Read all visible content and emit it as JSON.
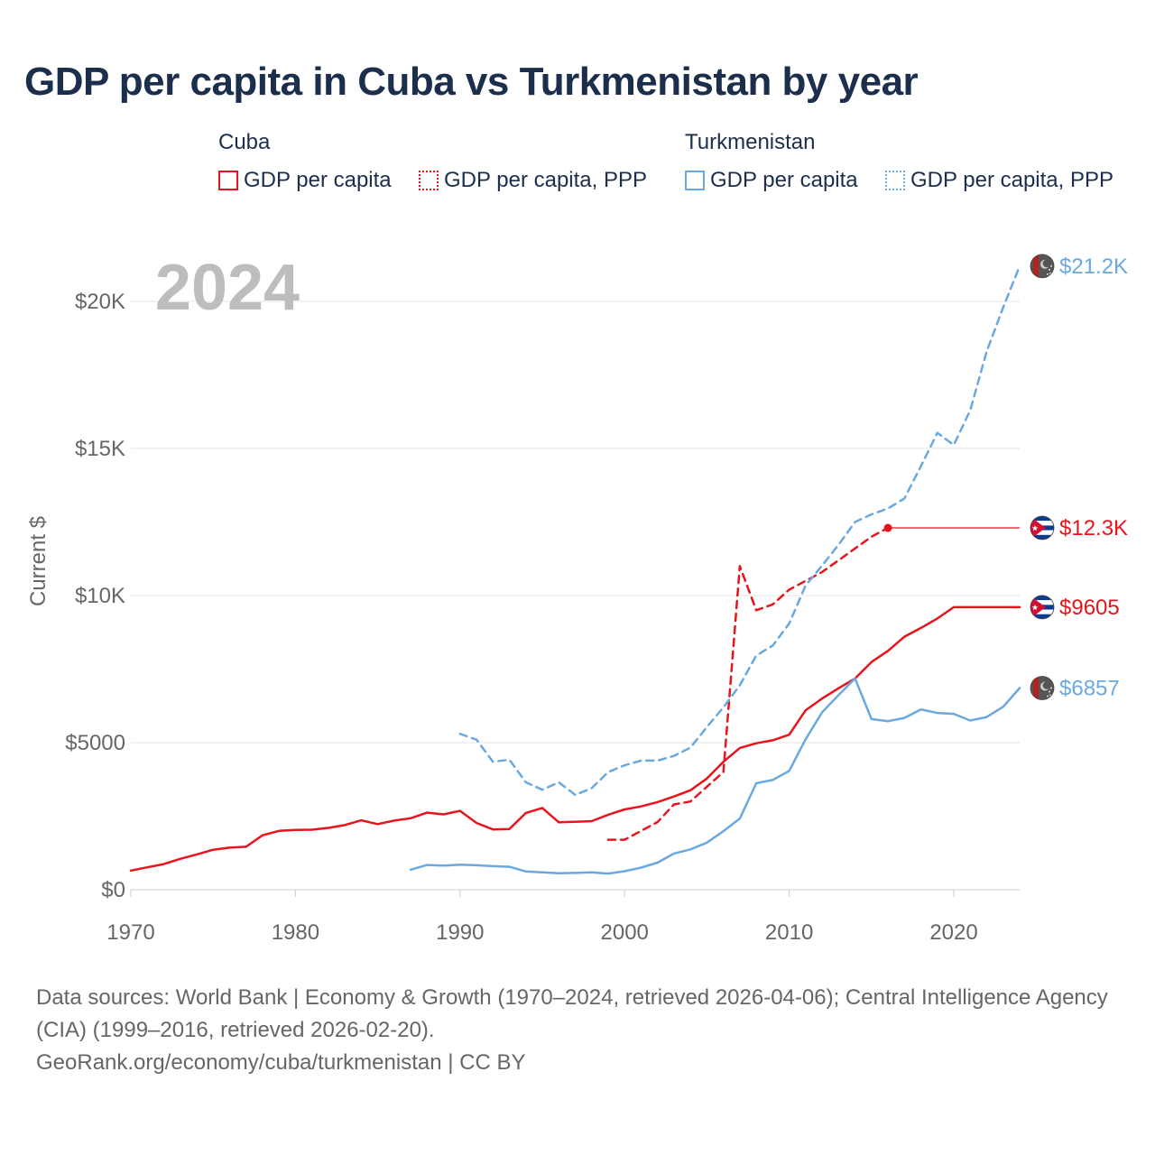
{
  "title": "GDP per capita in Cuba vs Turkmenistan by year",
  "year_label": "2024",
  "legend": {
    "groups": [
      {
        "name": "Cuba",
        "items": [
          {
            "label": "GDP per capita",
            "style": "solid",
            "color": "#e8141c"
          },
          {
            "label": "GDP per capita, PPP",
            "style": "dotted",
            "color": "#e8141c"
          }
        ]
      },
      {
        "name": "Turkmenistan",
        "items": [
          {
            "label": "GDP per capita",
            "style": "solid",
            "color": "#6aa8e0"
          },
          {
            "label": "GDP per capita, PPP",
            "style": "dotted",
            "color": "#6aa8e0"
          }
        ]
      }
    ]
  },
  "chart_data": {
    "type": "line",
    "title": "GDP per capita in Cuba vs Turkmenistan by year",
    "xlabel": "",
    "ylabel": "Current $",
    "xlim": [
      1970,
      2024
    ],
    "ylim": [
      0,
      22000
    ],
    "xticks": [
      1970,
      1980,
      1990,
      2000,
      2010,
      2020
    ],
    "xtick_labels": [
      "1970",
      "1980",
      "1990",
      "2000",
      "2010",
      "2020"
    ],
    "yticks": [
      0,
      5000,
      10000,
      15000,
      20000
    ],
    "ytick_labels": [
      "$0",
      "$5000",
      "$10K",
      "$15K",
      "$20K"
    ],
    "grid": true,
    "series": [
      {
        "name": "Cuba GDP per capita",
        "color": "#e8141c",
        "dash": "solid",
        "end_label": "$9605",
        "end_value": 9605,
        "flag": "cuba",
        "x": [
          1970,
          1971,
          1972,
          1973,
          1974,
          1975,
          1976,
          1977,
          1978,
          1979,
          1980,
          1981,
          1982,
          1983,
          1984,
          1985,
          1986,
          1987,
          1988,
          1989,
          1990,
          1991,
          1992,
          1993,
          1994,
          1995,
          1996,
          1997,
          1998,
          1999,
          2000,
          2001,
          2002,
          2003,
          2004,
          2005,
          2006,
          2007,
          2008,
          2009,
          2010,
          2011,
          2012,
          2013,
          2014,
          2015,
          2016,
          2017,
          2018,
          2019,
          2020,
          2024
        ],
        "y": [
          650,
          760,
          870,
          1050,
          1200,
          1360,
          1430,
          1460,
          1850,
          2000,
          2030,
          2040,
          2100,
          2200,
          2360,
          2230,
          2350,
          2430,
          2620,
          2560,
          2680,
          2270,
          2050,
          2060,
          2610,
          2780,
          2290,
          2310,
          2330,
          2550,
          2730,
          2830,
          2980,
          3170,
          3380,
          3780,
          4350,
          4820,
          4980,
          5080,
          5270,
          6100,
          6500,
          6850,
          7180,
          7740,
          8120,
          8600,
          8900,
          9220,
          9605,
          9605
        ]
      },
      {
        "name": "Cuba GDP per capita, PPP",
        "color": "#e8141c",
        "dash": "dashed",
        "end_label": "$12.3K",
        "end_value": 12300,
        "flag": "cuba",
        "last_data_year": 2016,
        "x": [
          1999,
          2000,
          2001,
          2002,
          2003,
          2004,
          2005,
          2006,
          2007,
          2008,
          2009,
          2010,
          2011,
          2012,
          2013,
          2014,
          2015,
          2016
        ],
        "y": [
          1700,
          1700,
          2000,
          2300,
          2900,
          3000,
          3500,
          4000,
          11000,
          9500,
          9700,
          10200,
          10500,
          10800,
          11200,
          11600,
          12000,
          12300
        ]
      },
      {
        "name": "Turkmenistan GDP per capita",
        "color": "#6aa8e0",
        "dash": "solid",
        "end_label": "$6857",
        "end_value": 6857,
        "flag": "turkmenistan",
        "x": [
          1987,
          1988,
          1989,
          1990,
          1991,
          1992,
          1993,
          1994,
          1995,
          1996,
          1997,
          1998,
          1999,
          2000,
          2001,
          2002,
          2003,
          2004,
          2005,
          2006,
          2007,
          2008,
          2009,
          2010,
          2011,
          2012,
          2013,
          2014,
          2015,
          2016,
          2017,
          2018,
          2019,
          2020,
          2021,
          2022,
          2023,
          2024
        ],
        "y": [
          680,
          840,
          820,
          850,
          830,
          800,
          780,
          620,
          590,
          560,
          570,
          590,
          550,
          630,
          750,
          920,
          1230,
          1370,
          1600,
          1990,
          2420,
          3620,
          3730,
          4040,
          5120,
          6030,
          6620,
          7180,
          5800,
          5730,
          5840,
          6130,
          6010,
          5980,
          5750,
          5870,
          6220,
          6857
        ]
      },
      {
        "name": "Turkmenistan GDP per capita, PPP",
        "color": "#6aa8e0",
        "dash": "dashed",
        "end_label": "$21.2K",
        "end_value": 21200,
        "flag": "turkmenistan",
        "x": [
          1990,
          1991,
          1992,
          1993,
          1994,
          1995,
          1996,
          1997,
          1998,
          1999,
          2000,
          2001,
          2002,
          2003,
          2004,
          2005,
          2006,
          2007,
          2008,
          2009,
          2010,
          2011,
          2012,
          2013,
          2014,
          2015,
          2016,
          2017,
          2018,
          2019,
          2020,
          2021,
          2022,
          2023,
          2024
        ],
        "y": [
          5300,
          5100,
          4350,
          4420,
          3650,
          3400,
          3650,
          3220,
          3450,
          4000,
          4230,
          4390,
          4390,
          4550,
          4830,
          5530,
          6200,
          6950,
          7960,
          8300,
          9050,
          10350,
          11020,
          11730,
          12500,
          12760,
          12960,
          13300,
          14400,
          15530,
          15120,
          16300,
          18300,
          19800,
          21200
        ]
      }
    ]
  },
  "footer": {
    "sources": "Data sources: World Bank | Economy & Growth (1970–2024, retrieved 2026-04-06); Central Intelligence Agency (CIA) (1999–2016, retrieved 2026-02-20).",
    "attribution": "GeoRank.org/economy/cuba/turkmenistan | CC BY"
  }
}
